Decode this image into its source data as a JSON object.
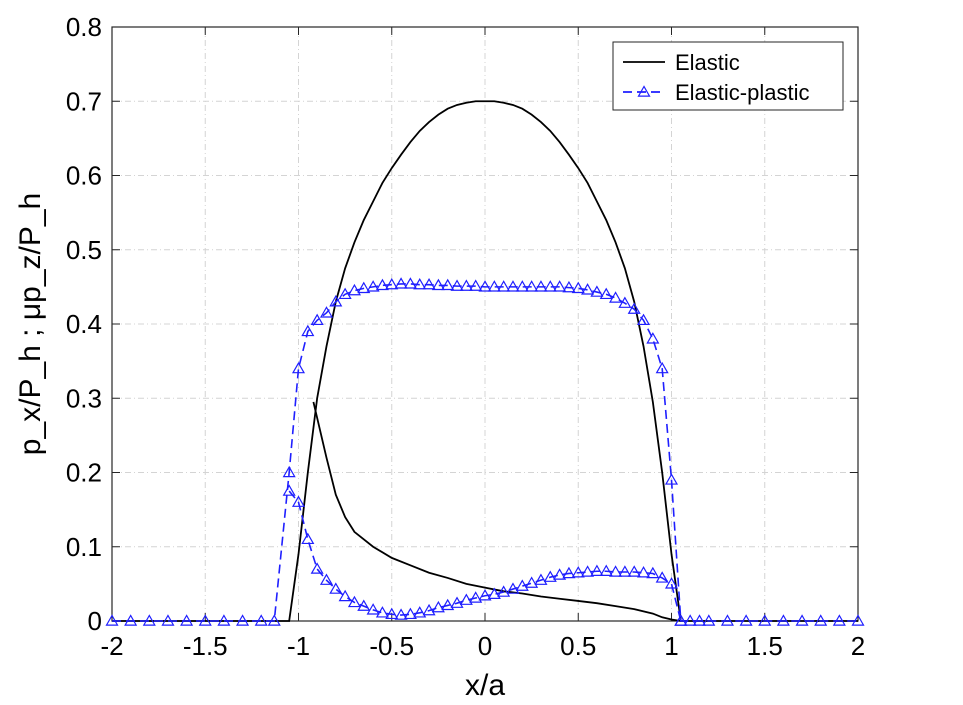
{
  "chart_data": {
    "type": "line",
    "xlabel": "x/a",
    "ylabel": "p_x/P_h ; μp_z/P_h",
    "xlim": [
      -2,
      2
    ],
    "ylim": [
      0,
      0.8
    ],
    "xticks": [
      "-2",
      "-1.5",
      "-1",
      "-0.5",
      "0",
      "0.5",
      "1",
      "1.5",
      "2"
    ],
    "yticks": [
      "0",
      "0.1",
      "0.2",
      "0.3",
      "0.4",
      "0.5",
      "0.6",
      "0.7",
      "0.8"
    ],
    "grid": true,
    "legend_position": "top-right",
    "series": [
      {
        "name": "Elastic",
        "color": "#000000",
        "style": "solid",
        "marker": "none",
        "segments": [
          {
            "x": [
              -2,
              -1.05,
              -1.0,
              -0.95,
              -0.9,
              -0.85,
              -0.8,
              -0.75,
              -0.7,
              -0.65,
              -0.6,
              -0.55,
              -0.5,
              -0.45,
              -0.4,
              -0.35,
              -0.3,
              -0.25,
              -0.2,
              -0.15,
              -0.1,
              -0.05,
              0,
              0.05,
              0.1,
              0.15,
              0.2,
              0.25,
              0.3,
              0.35,
              0.4,
              0.45,
              0.5,
              0.55,
              0.6,
              0.65,
              0.7,
              0.75,
              0.8,
              0.85,
              0.9,
              0.95,
              1.0,
              1.05,
              2
            ],
            "y": [
              0,
              0,
              0.09,
              0.2,
              0.3,
              0.37,
              0.43,
              0.475,
              0.51,
              0.54,
              0.565,
              0.59,
              0.61,
              0.628,
              0.645,
              0.66,
              0.672,
              0.682,
              0.69,
              0.695,
              0.698,
              0.7,
              0.7,
              0.7,
              0.698,
              0.695,
              0.69,
              0.682,
              0.672,
              0.66,
              0.645,
              0.628,
              0.61,
              0.59,
              0.565,
              0.54,
              0.51,
              0.475,
              0.43,
              0.37,
              0.295,
              0.2,
              0.09,
              0,
              0
            ]
          },
          {
            "x": [
              -0.92,
              -0.85,
              -0.8,
              -0.75,
              -0.7,
              -0.6,
              -0.5,
              -0.4,
              -0.3,
              -0.2,
              -0.1,
              0,
              0.1,
              0.2,
              0.3,
              0.4,
              0.5,
              0.6,
              0.7,
              0.8,
              0.9,
              0.95,
              1.0,
              1.05
            ],
            "y": [
              0.295,
              0.22,
              0.17,
              0.14,
              0.12,
              0.1,
              0.085,
              0.075,
              0.065,
              0.058,
              0.05,
              0.045,
              0.04,
              0.037,
              0.033,
              0.03,
              0.027,
              0.024,
              0.02,
              0.016,
              0.01,
              0.005,
              0.002,
              0
            ]
          }
        ]
      },
      {
        "name": "Elastic-plastic",
        "color": "#1f1fff",
        "style": "dashed",
        "marker": "triangle",
        "segments": [
          {
            "x": [
              -2,
              -1.9,
              -1.8,
              -1.7,
              -1.6,
              -1.5,
              -1.4,
              -1.3,
              -1.2,
              -1.13,
              -1.05,
              -1.0,
              -0.95,
              -0.9,
              -0.85,
              -0.8,
              -0.75,
              -0.7,
              -0.65,
              -0.6,
              -0.55,
              -0.5,
              -0.45,
              -0.4,
              -0.35,
              -0.3,
              -0.25,
              -0.2,
              -0.15,
              -0.1,
              -0.05,
              0,
              0.05,
              0.1,
              0.15,
              0.2,
              0.25,
              0.3,
              0.35,
              0.4,
              0.45,
              0.5,
              0.55,
              0.6,
              0.65,
              0.7,
              0.75,
              0.8,
              0.85,
              0.9,
              0.95,
              1.0,
              1.05,
              1.1,
              1.15,
              1.2,
              1.3,
              1.4,
              1.5,
              1.6,
              1.7,
              1.8,
              1.9,
              2
            ],
            "y": [
              0,
              0,
              0,
              0,
              0,
              0,
              0,
              0,
              0,
              0,
              0.2,
              0.34,
              0.39,
              0.405,
              0.415,
              0.43,
              0.44,
              0.445,
              0.448,
              0.45,
              0.452,
              0.453,
              0.454,
              0.454,
              0.453,
              0.453,
              0.452,
              0.452,
              0.451,
              0.451,
              0.451,
              0.45,
              0.45,
              0.45,
              0.45,
              0.45,
              0.45,
              0.45,
              0.45,
              0.45,
              0.449,
              0.448,
              0.446,
              0.443,
              0.44,
              0.435,
              0.428,
              0.42,
              0.405,
              0.38,
              0.34,
              0.19,
              0,
              0,
              0,
              0,
              0,
              0,
              0,
              0,
              0,
              0,
              0,
              0
            ]
          },
          {
            "x": [
              -1.05,
              -1.0,
              -0.95,
              -0.9,
              -0.85,
              -0.8,
              -0.75,
              -0.7,
              -0.65,
              -0.6,
              -0.55,
              -0.5,
              -0.45,
              -0.4,
              -0.35,
              -0.3,
              -0.25,
              -0.2,
              -0.15,
              -0.1,
              -0.05,
              0,
              0.05,
              0.1,
              0.15,
              0.2,
              0.25,
              0.3,
              0.35,
              0.4,
              0.45,
              0.5,
              0.55,
              0.6,
              0.65,
              0.7,
              0.75,
              0.8,
              0.85,
              0.9,
              0.95,
              1.0,
              1.05
            ],
            "y": [
              0.175,
              0.16,
              0.11,
              0.07,
              0.055,
              0.043,
              0.033,
              0.025,
              0.02,
              0.015,
              0.011,
              0.009,
              0.008,
              0.009,
              0.011,
              0.014,
              0.018,
              0.021,
              0.024,
              0.028,
              0.031,
              0.034,
              0.036,
              0.039,
              0.043,
              0.047,
              0.051,
              0.055,
              0.059,
              0.062,
              0.064,
              0.065,
              0.066,
              0.067,
              0.067,
              0.066,
              0.066,
              0.066,
              0.065,
              0.064,
              0.058,
              0.05,
              0
            ]
          }
        ]
      }
    ]
  }
}
